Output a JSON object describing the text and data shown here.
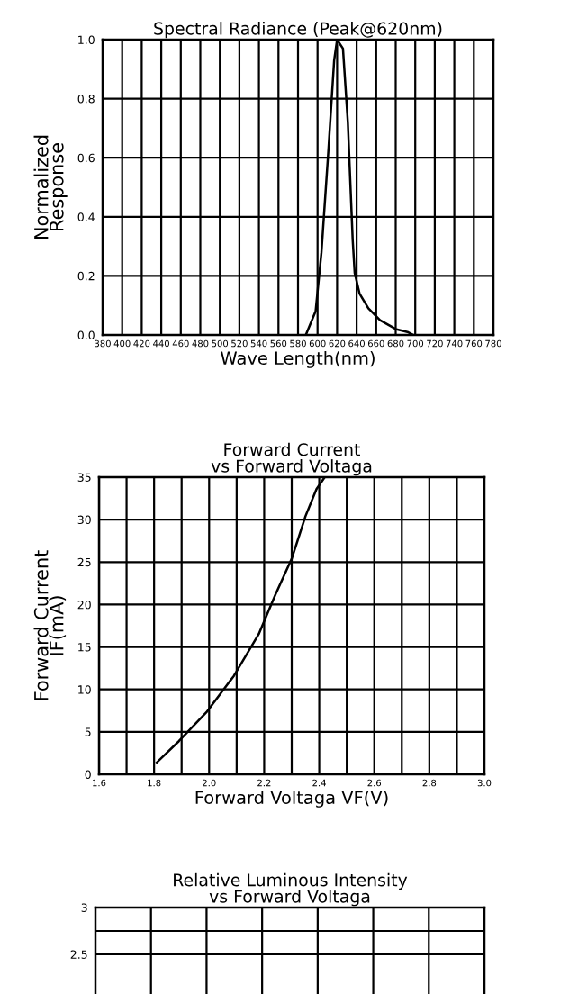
{
  "chart_data": [
    {
      "type": "line",
      "title": "Spectral Radiance (Peak@620nm)",
      "xlabel": "Wave Length(nm)",
      "ylabel": "Normalized\nResponse",
      "series": [
        {
          "color": "#000000",
          "x": [
            588,
            598,
            604,
            611,
            617,
            620,
            626,
            631,
            636,
            638,
            643,
            652,
            664,
            680,
            692,
            698
          ],
          "values": [
            0,
            0.08,
            0.28,
            0.62,
            0.93,
            1.0,
            0.97,
            0.72,
            0.32,
            0.21,
            0.14,
            0.09,
            0.05,
            0.02,
            0.01,
            0
          ]
        }
      ],
      "xlim": [
        380,
        780
      ],
      "xticks": [
        380,
        400,
        420,
        440,
        460,
        480,
        500,
        520,
        540,
        560,
        580,
        600,
        620,
        640,
        660,
        680,
        700,
        720,
        740,
        760,
        780
      ],
      "ylim": [
        0,
        1
      ],
      "yticks": [
        {
          "value": 0,
          "label": "0.0"
        },
        {
          "value": 0.2,
          "label": "0.2"
        },
        {
          "value": 0.4,
          "label": "0.4"
        },
        {
          "value": 0.6,
          "label": "0.6"
        },
        {
          "value": 0.8,
          "label": "0.8"
        },
        {
          "value": 1,
          "label": "1.0"
        }
      ],
      "grid": true,
      "marker": "none",
      "line_style": "solid"
    },
    {
      "type": "line",
      "title": "Forward Current\nvs Forward Voltaga",
      "xlabel": "Forward Voltaga VF(V)",
      "ylabel": "Forward Current\nIF(mA)",
      "series": [
        {
          "color": "#000000",
          "x": [
            1.81,
            1.89,
            1.99,
            2.09,
            2.18,
            2.24,
            2.3,
            2.35,
            2.39,
            2.42
          ],
          "values": [
            1.4,
            3.9,
            7.3,
            11.6,
            16.5,
            21.1,
            25.4,
            30.4,
            33.6,
            35
          ]
        }
      ],
      "xlim": [
        1.6,
        3.0
      ],
      "xticks": [
        1.6,
        {
          "value": 1.7,
          "label": null
        },
        1.8,
        {
          "value": 1.9,
          "label": null
        },
        {
          "value": 2.0,
          "label": "2.0"
        },
        {
          "value": 2.1,
          "label": null
        },
        2.2,
        {
          "value": 2.3,
          "label": null
        },
        2.4,
        {
          "value": 2.5,
          "label": null
        },
        2.6,
        {
          "value": 2.7,
          "label": null
        },
        2.8,
        {
          "value": 2.9,
          "label": null
        },
        {
          "value": 3.0,
          "label": "3.0"
        }
      ],
      "ylim": [
        0,
        35
      ],
      "yticks": [
        0,
        5,
        10,
        15,
        20,
        25,
        30,
        35
      ],
      "grid": true,
      "marker": "none",
      "line_style": "solid"
    },
    {
      "type": "line",
      "title": "Relative Luminous Intensity\nvs Forward Voltaga",
      "categories": [
        null,
        null,
        null,
        null,
        null,
        null,
        null
      ],
      "ylim": [
        2,
        3
      ],
      "yticks": [
        2.5,
        {
          "value": 2.75,
          "label": null
        },
        3
      ],
      "grid": true,
      "tick_labels": "y"
    }
  ]
}
